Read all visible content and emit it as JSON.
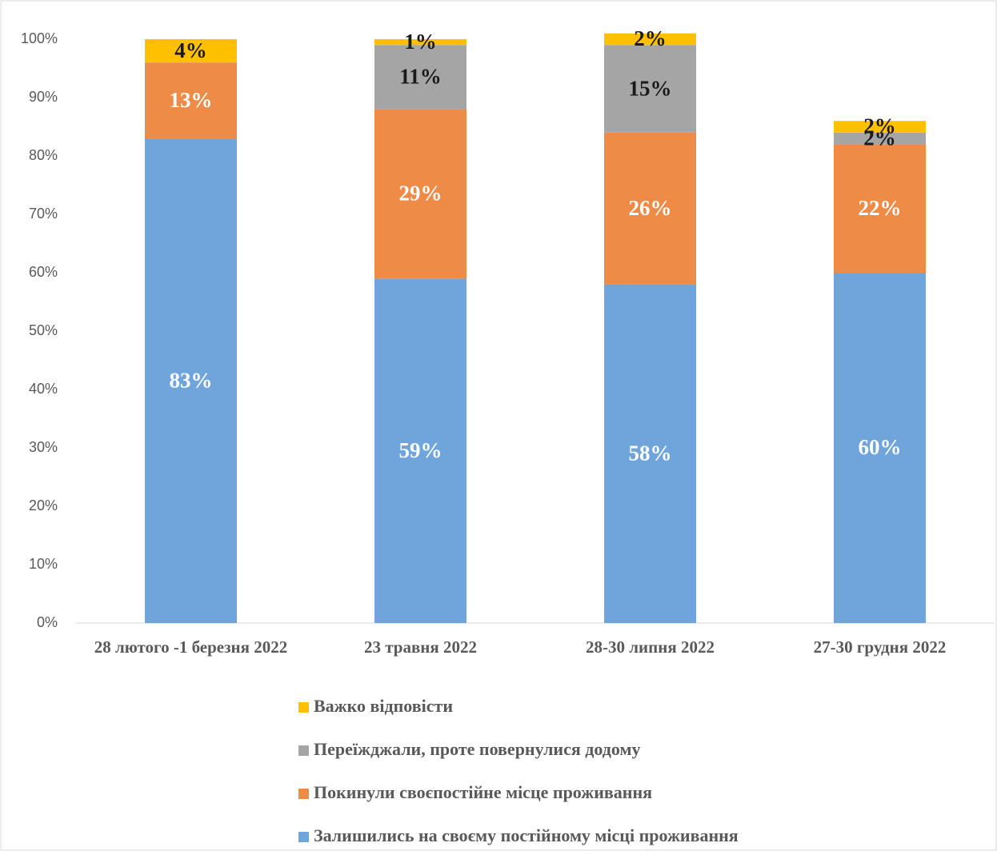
{
  "chart_data": {
    "type": "stacked-bar",
    "categories": [
      "28 лютого -1 березня 2022",
      "23 травня 2022",
      "28-30 липня 2022",
      "27-30 грудня 2022"
    ],
    "series": [
      {
        "name": "Залишились на своєму постійному місці проживання",
        "color": "#6fa5db",
        "values": [
          83,
          59,
          58,
          60
        ],
        "value_labels": [
          "83%",
          "59%",
          "58%",
          "60%"
        ]
      },
      {
        "name": "Покинули своєпостійне місце проживання",
        "color": "#ee8b47",
        "values": [
          13,
          29,
          26,
          22
        ],
        "value_labels": [
          "13%",
          "29%",
          "26%",
          "22%"
        ]
      },
      {
        "name": "Переїжджали, проте повернулися додому",
        "color": "#a5a5a5",
        "values": [
          null,
          11,
          15,
          2
        ],
        "value_labels": [
          null,
          "11%",
          "15%",
          "2%"
        ]
      },
      {
        "name": "Важко відповісти",
        "color": "#ffc000",
        "values": [
          4,
          1,
          2,
          2
        ],
        "value_labels": [
          "4%",
          "1%",
          "2%",
          "2%"
        ]
      }
    ],
    "ylim": [
      0,
      100
    ],
    "yticks": [
      {
        "value": 0,
        "label": "0%"
      },
      {
        "value": 10,
        "label": "10%"
      },
      {
        "value": 20,
        "label": "20%"
      },
      {
        "value": 30,
        "label": "30%"
      },
      {
        "value": 40,
        "label": "40%"
      },
      {
        "value": 50,
        "label": "50%"
      },
      {
        "value": 60,
        "label": "60%"
      },
      {
        "value": 70,
        "label": "70%"
      },
      {
        "value": 80,
        "label": "80%"
      },
      {
        "value": 90,
        "label": "90%"
      },
      {
        "value": 100,
        "label": "100%"
      }
    ],
    "grid": false
  }
}
